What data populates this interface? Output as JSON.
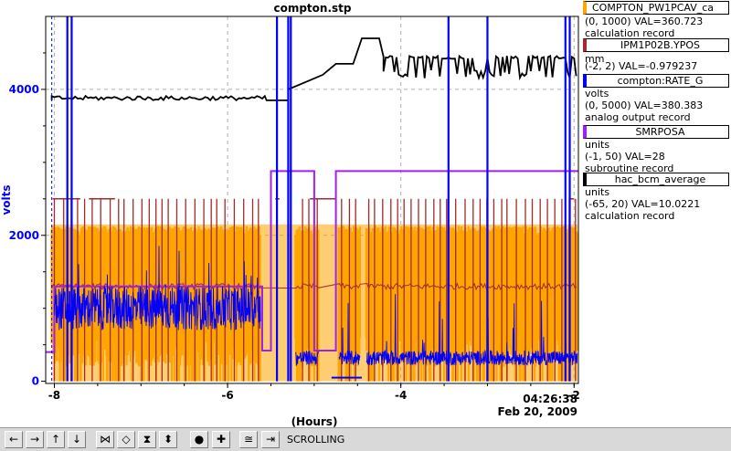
{
  "chart_data": {
    "type": "line",
    "title": "compton.stp",
    "xlabel": "(Hours)",
    "ylabel": "volts",
    "x_ticks": [
      "-8",
      "-6",
      "-4",
      "-2"
    ],
    "y_ticks": [
      "0",
      "2000",
      "4000"
    ],
    "xlim": [
      -8.1,
      -1.95
    ],
    "ylim": [
      -30,
      5000
    ],
    "timestamp_time": "04:26:38",
    "timestamp_date": "Feb 20, 2009",
    "grid": true,
    "series": [
      {
        "name": "COMPTON_PW1PCAV_ca",
        "color": "#ffa500",
        "range": "(0, 1000)",
        "value": "VAL=360.723",
        "record": "calculation record",
        "units": ""
      },
      {
        "name": "IPM1P02B.YPOS",
        "color": "#a52a2a",
        "range": "(-2, 2)",
        "value": "VAL=-0.979237",
        "record": "",
        "units": "mm"
      },
      {
        "name": "compton:RATE_G",
        "color": "#0000ff",
        "range": "(0, 5000)",
        "value": "VAL=380.383",
        "record": "analog output record",
        "units": "volts"
      },
      {
        "name": "SMRPOSA",
        "color": "#a020f0",
        "range": "(-1, 50)",
        "value": "VAL=28",
        "record": "subroutine record",
        "units": "units"
      },
      {
        "name": "hac_bcm_average",
        "color": "#000000",
        "range": "(-65, 20)",
        "value": "VAL=10.0221",
        "record": "calculation record",
        "units": "units"
      }
    ]
  },
  "toolbar": {
    "status": "SCROLLING",
    "buttons": [
      {
        "name": "scroll-left-button",
        "glyph": "←"
      },
      {
        "name": "scroll-right-button",
        "glyph": "→"
      },
      {
        "name": "scroll-up-button",
        "glyph": "↑"
      },
      {
        "name": "scroll-down-button",
        "glyph": "↓"
      },
      {
        "name": "zoom-in-x-button",
        "glyph": "⋈"
      },
      {
        "name": "zoom-out-x-button",
        "glyph": "◇"
      },
      {
        "name": "zoom-in-y-button",
        "glyph": "⧗"
      },
      {
        "name": "zoom-out-y-button",
        "glyph": "⬍"
      },
      {
        "name": "stagger-button",
        "glyph": "●"
      },
      {
        "name": "crosshair-button",
        "glyph": "✚"
      },
      {
        "name": "auto-scale-button",
        "glyph": "≅"
      },
      {
        "name": "scroll-mode-button",
        "glyph": "⇥"
      }
    ]
  },
  "colors": {
    "orange": "#ffa500",
    "brown": "#a52a2a",
    "blue": "#0000ff",
    "purple": "#a020f0",
    "black": "#000000",
    "grid": "#b0b0b0"
  }
}
